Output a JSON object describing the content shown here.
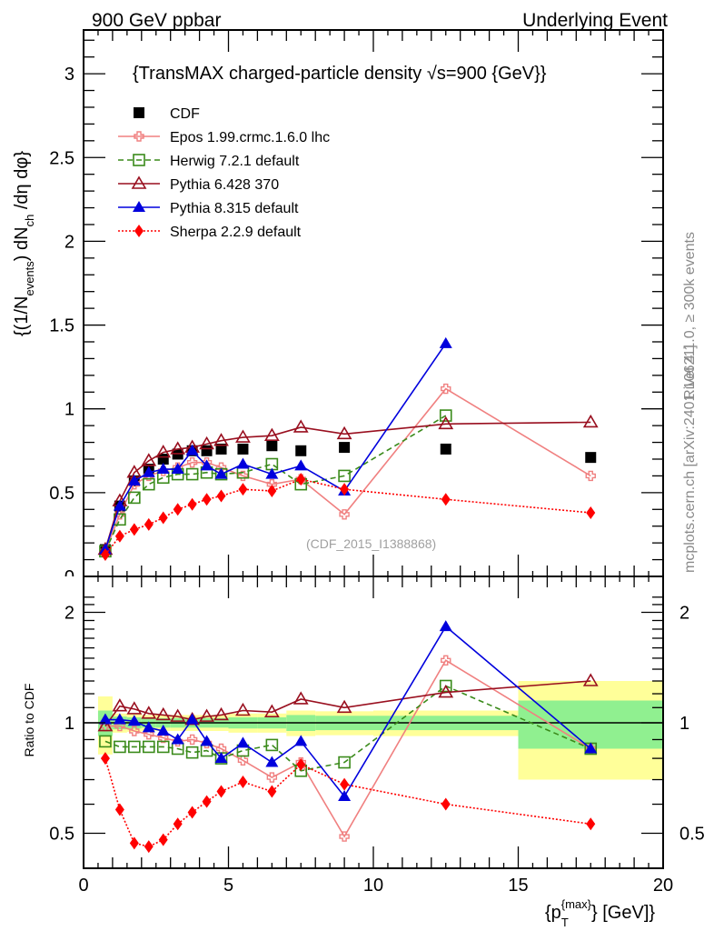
{
  "header": {
    "left_label": "900 GeV ppbar",
    "right_label": "Underlying Event"
  },
  "side_labels": {
    "rivet": "Rivet 4.1.0, ≥ 300k events",
    "mcplots": "mcplots.cern.ch [arXiv:2401.10621]"
  },
  "chart_data": [
    {
      "type": "scatter",
      "title": "{TransMAX charged-particle density √s=900 {GeV}}",
      "xlabel": "{p_T^{max}} [GeV]}",
      "ylabel": "{(1/N_events) dN_ch /dη dφ}",
      "xlim": [
        0,
        20
      ],
      "ylim": [
        0,
        3.25
      ],
      "yticks": [
        "0.5",
        "1",
        "1.5",
        "2",
        "2.5",
        "3"
      ],
      "ytick_values": [
        0.5,
        1,
        1.5,
        2,
        2.5,
        3
      ],
      "annotation": "(CDF_2015_I1388868)",
      "legend_position": "top-left",
      "x": [
        0.75,
        1.25,
        1.75,
        2.25,
        2.75,
        3.25,
        3.75,
        4.25,
        4.75,
        5.5,
        6.5,
        7.5,
        9.0,
        12.5,
        17.5
      ],
      "series": [
        {
          "name": "CDF",
          "color": "#000000",
          "marker": "filled-square",
          "line": "none",
          "values": [
            0.16,
            0.42,
            0.57,
            0.64,
            0.7,
            0.73,
            0.75,
            0.75,
            0.76,
            0.76,
            0.78,
            0.75,
            0.77,
            0.76,
            0.71
          ]
        },
        {
          "name": "Epos 1.99.crmc.1.6.0 lhc",
          "color": "#f08080",
          "marker": "open-cross",
          "line": "solid",
          "values": [
            0.15,
            0.37,
            0.55,
            0.6,
            0.63,
            0.65,
            0.68,
            0.68,
            0.65,
            0.6,
            0.55,
            0.58,
            0.37,
            1.12,
            0.6
          ]
        },
        {
          "name": "Herwig 7.2.1 default",
          "color": "#3a8a1a",
          "marker": "open-square",
          "line": "dashed",
          "values": [
            0.15,
            0.34,
            0.47,
            0.55,
            0.59,
            0.61,
            0.61,
            0.62,
            0.61,
            0.62,
            0.67,
            0.55,
            0.6,
            0.96,
            null
          ]
        },
        {
          "name": "Pythia 6.428 370",
          "color": "#990f1f",
          "marker": "open-triangle",
          "line": "solid",
          "values": [
            0.16,
            0.45,
            0.62,
            0.69,
            0.74,
            0.76,
            0.77,
            0.79,
            0.81,
            0.83,
            0.84,
            0.89,
            0.85,
            0.91,
            0.92
          ]
        },
        {
          "name": "Pythia 8.315 default",
          "color": "#0000dd",
          "marker": "filled-triangle",
          "line": "solid",
          "values": [
            0.16,
            0.42,
            0.57,
            0.62,
            0.64,
            0.64,
            0.75,
            0.66,
            0.61,
            0.67,
            0.61,
            0.66,
            0.51,
            1.39,
            null
          ]
        },
        {
          "name": "Sherpa 2.2.9 default",
          "color": "#ff0000",
          "marker": "filled-diamond",
          "line": "dotted",
          "values": [
            0.13,
            0.24,
            0.28,
            0.31,
            0.35,
            0.4,
            0.43,
            0.46,
            0.48,
            0.52,
            0.51,
            0.58,
            0.52,
            0.46,
            0.38
          ]
        }
      ]
    },
    {
      "type": "scatter",
      "title": "",
      "xlabel": "{p_T^{max}} [GeV]}",
      "ylabel": "Ratio to CDF",
      "xlim": [
        0,
        20
      ],
      "ylim": [
        0.42,
        2.3
      ],
      "yscale": "log",
      "yticks": [
        "0.5",
        "1",
        "2"
      ],
      "ytick_values": [
        0.5,
        1,
        2
      ],
      "xticks": [
        "0",
        "5",
        "10",
        "15",
        "20"
      ],
      "xtick_values": [
        0,
        5,
        10,
        15,
        20
      ],
      "x": [
        0.75,
        1.25,
        1.75,
        2.25,
        2.75,
        3.25,
        3.75,
        4.25,
        4.75,
        5.5,
        6.5,
        7.5,
        9.0,
        12.5,
        17.5
      ],
      "bands": {
        "edges": [
          0.5,
          1.0,
          1.5,
          2.0,
          2.5,
          3.0,
          3.5,
          4.0,
          4.5,
          5.0,
          6.0,
          7.0,
          8.0,
          10.0,
          15.0,
          20.0
        ],
        "stat_color": "#90f090",
        "total_color": "#ffff99",
        "stat_half_width": [
          0.08,
          0.04,
          0.035,
          0.03,
          0.03,
          0.03,
          0.03,
          0.03,
          0.03,
          0.035,
          0.035,
          0.05,
          0.045,
          0.045,
          0.15
        ],
        "total_half_width": [
          0.18,
          0.06,
          0.055,
          0.05,
          0.05,
          0.05,
          0.05,
          0.05,
          0.05,
          0.06,
          0.06,
          0.08,
          0.075,
          0.08,
          0.3
        ]
      },
      "series": [
        {
          "name": "Epos 1.99.crmc.1.6.0 lhc",
          "color": "#f08080",
          "values": [
            0.98,
            0.98,
            0.95,
            0.93,
            0.91,
            0.89,
            0.9,
            0.88,
            0.85,
            0.79,
            0.71,
            0.78,
            0.49,
            1.48,
            0.85
          ]
        },
        {
          "name": "Herwig 7.2.1 default",
          "color": "#3a8a1a",
          "values": [
            0.89,
            0.86,
            0.86,
            0.86,
            0.86,
            0.85,
            0.83,
            0.84,
            0.8,
            0.84,
            0.87,
            0.74,
            0.78,
            1.26,
            0.85
          ]
        },
        {
          "name": "Pythia 6.428 370",
          "color": "#990f1f",
          "values": [
            0.98,
            1.11,
            1.09,
            1.06,
            1.05,
            1.04,
            1.02,
            1.04,
            1.05,
            1.08,
            1.07,
            1.16,
            1.1,
            1.21,
            1.3
          ]
        },
        {
          "name": "Pythia 8.315 default",
          "color": "#0000dd",
          "values": [
            1.02,
            1.02,
            1.01,
            0.97,
            0.95,
            0.9,
            1.02,
            0.89,
            0.8,
            0.88,
            0.78,
            0.89,
            0.63,
            1.83,
            0.85
          ]
        },
        {
          "name": "Sherpa 2.2.9 default",
          "color": "#ff0000",
          "values": [
            0.8,
            0.58,
            0.47,
            0.46,
            0.48,
            0.53,
            0.57,
            0.61,
            0.65,
            0.69,
            0.65,
            0.77,
            0.68,
            0.6,
            0.53
          ]
        }
      ]
    }
  ]
}
